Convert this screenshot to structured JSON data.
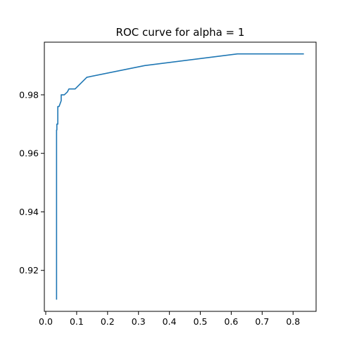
{
  "chart_data": {
    "type": "line",
    "title": "ROC curve for alpha = 1",
    "xlabel": "",
    "ylabel": "",
    "xlim": [
      -0.0045,
      0.8745
    ],
    "ylim": [
      0.906,
      0.998
    ],
    "xticks": [
      "0.0",
      "0.1",
      "0.2",
      "0.3",
      "0.4",
      "0.5",
      "0.6",
      "0.7",
      "0.8"
    ],
    "yticks": [
      "0.92",
      "0.94",
      "0.96",
      "0.98"
    ],
    "grid": false,
    "series": [
      {
        "color": "#1f77b4",
        "x": [
          0.035,
          0.035,
          0.036,
          0.036,
          0.039,
          0.039,
          0.043,
          0.043,
          0.05,
          0.05,
          0.06,
          0.07,
          0.075,
          0.08,
          0.085,
          0.095,
          0.133,
          0.32,
          0.62,
          0.835
        ],
        "y": [
          0.91,
          0.968,
          0.968,
          0.97,
          0.97,
          0.976,
          0.976,
          0.976,
          0.978,
          0.98,
          0.98,
          0.981,
          0.982,
          0.982,
          0.982,
          0.982,
          0.986,
          0.99,
          0.994,
          0.994
        ]
      }
    ]
  }
}
